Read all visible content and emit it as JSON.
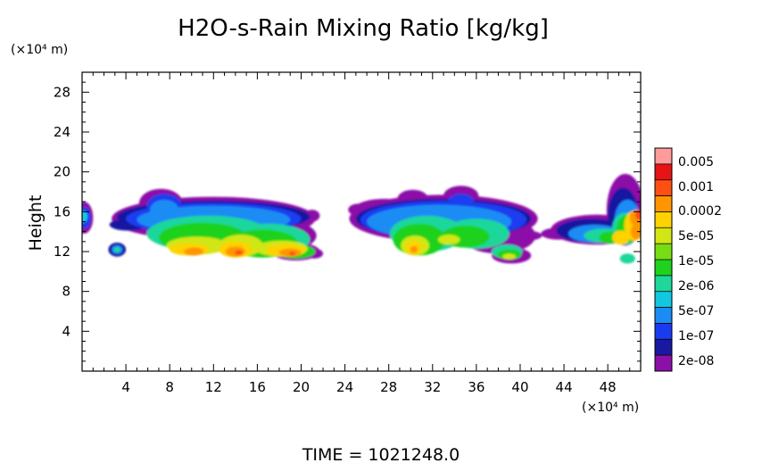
{
  "chart_data": {
    "type": "heatmap",
    "title": "H2O-s-Rain Mixing Ratio [kg/kg]",
    "ylabel": "Height",
    "y_unit": "(×10⁴ m)",
    "x_unit": "(×10⁴ m)",
    "xlim": [
      0,
      51
    ],
    "ylim": [
      0,
      30
    ],
    "x_ticks": [
      "4",
      "8",
      "12",
      "16",
      "20",
      "24",
      "28",
      "32",
      "36",
      "40",
      "44",
      "48"
    ],
    "x_tick_values": [
      4,
      8,
      12,
      16,
      20,
      24,
      28,
      32,
      36,
      40,
      44,
      48
    ],
    "y_ticks": [
      "4",
      "8",
      "12",
      "16",
      "20",
      "24",
      "28"
    ],
    "y_tick_values": [
      4,
      8,
      12,
      16,
      20,
      24,
      28
    ],
    "colorbar": {
      "labels": [
        "0.005",
        "0.001",
        "0.0002",
        "5e-05",
        "1e-05",
        "2e-06",
        "5e-07",
        "1e-07",
        "2e-08"
      ],
      "colors": [
        "#8c0fa8",
        "#1818a0",
        "#1a3cf0",
        "#1c8cf5",
        "#12c8e0",
        "#1ed79b",
        "#1ed21e",
        "#78dc14",
        "#d2e614",
        "#ffd200",
        "#ff9600",
        "#ff5014",
        "#e61414",
        "#ff9b9b"
      ]
    },
    "regions": [
      {
        "x": [
          0,
          0.8
        ],
        "y": [
          14,
          17
        ],
        "peak_level": 4
      },
      {
        "x": [
          2.5,
          3.8
        ],
        "y": [
          11.5,
          13
        ],
        "peak_level": 4
      },
      {
        "x": [
          2.5,
          21.5
        ],
        "y": [
          10.8,
          18.3
        ],
        "peak_level": 12
      },
      {
        "x": [
          24.5,
          42
        ],
        "y": [
          10.5,
          18.5
        ],
        "peak_level": 11
      },
      {
        "x": [
          41,
          51
        ],
        "y": [
          10.8,
          19.6
        ],
        "peak_level": 12
      }
    ],
    "time_label": "TIME = 1021248.0"
  }
}
